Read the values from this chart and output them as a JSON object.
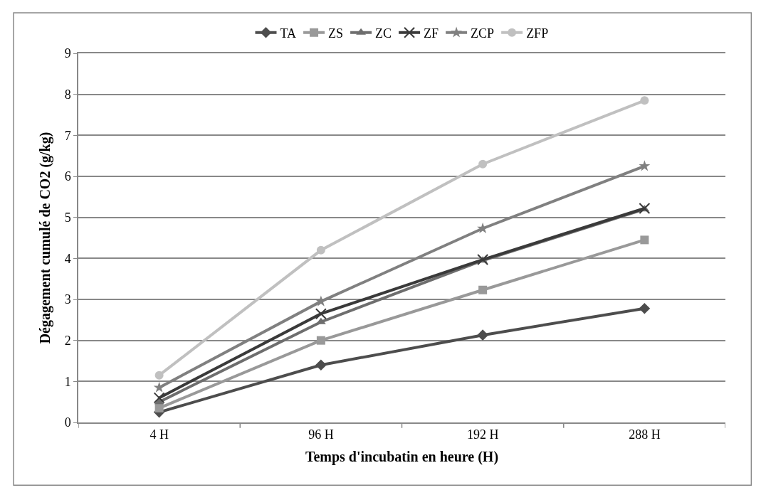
{
  "chart_data": {
    "type": "line",
    "xlabel": "Temps d'incubatin en heure (H)",
    "ylabel": "Dégagement cumulé de CO2 (g/kg)",
    "categories": [
      "4 H",
      "96 H",
      "192 H",
      "288 H"
    ],
    "series": [
      {
        "name": "TA",
        "color": "#4d4d4d",
        "marker": "diamond",
        "values": [
          0.25,
          1.4,
          2.13,
          2.78
        ]
      },
      {
        "name": "ZS",
        "color": "#999999",
        "marker": "square",
        "values": [
          0.35,
          2.0,
          3.23,
          4.45
        ]
      },
      {
        "name": "ZC",
        "color": "#6e6e6e",
        "marker": "triangle",
        "values": [
          0.5,
          2.45,
          3.95,
          5.2
        ]
      },
      {
        "name": "ZF",
        "color": "#3a3a3a",
        "marker": "cross",
        "values": [
          0.6,
          2.65,
          3.97,
          5.22
        ]
      },
      {
        "name": "ZCP",
        "color": "#808080",
        "marker": "star",
        "values": [
          0.85,
          2.95,
          4.73,
          6.25
        ]
      },
      {
        "name": "ZFP",
        "color": "#c0c0c0",
        "marker": "circle",
        "values": [
          1.15,
          4.2,
          6.3,
          7.85
        ]
      }
    ],
    "ylim": [
      0,
      9
    ],
    "yticks": [
      0,
      1,
      2,
      3,
      4,
      5,
      6,
      7,
      8,
      9
    ],
    "grid": "y",
    "legend": "top"
  }
}
